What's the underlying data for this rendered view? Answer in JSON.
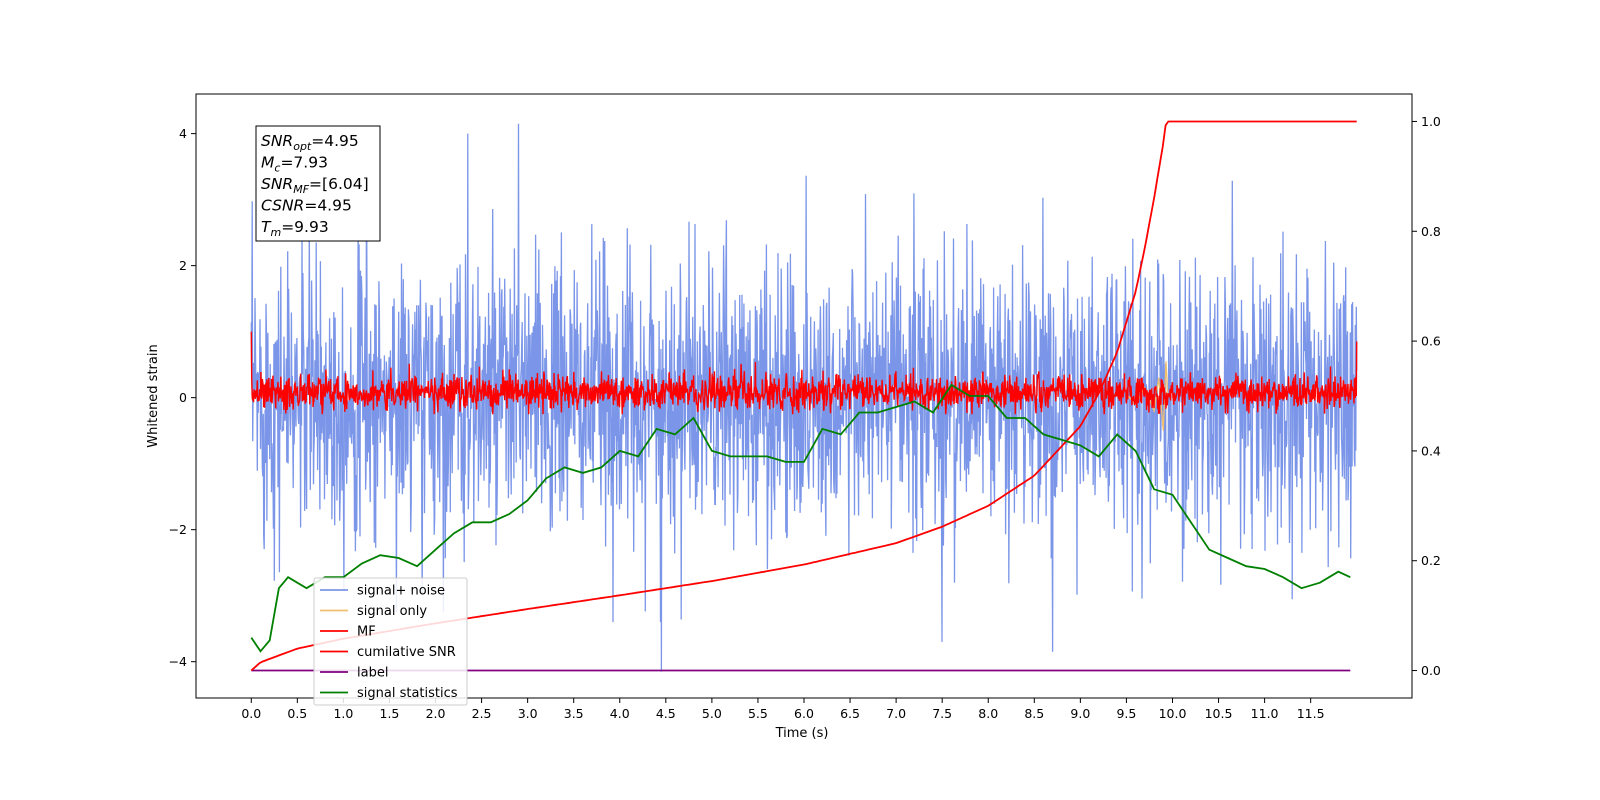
{
  "chart_data": {
    "type": "line",
    "xlabel": "Time (s)",
    "ylabel": "Whitened strain",
    "ylabel_right": "",
    "xlim": [
      -0.6,
      12.6
    ],
    "ylim": [
      -4.55,
      4.6
    ],
    "ylim_right": [
      -0.05,
      1.05
    ],
    "x_ticks": [
      "0.0",
      "0.5",
      "1.0",
      "1.5",
      "2.0",
      "2.5",
      "3.0",
      "3.5",
      "4.0",
      "4.5",
      "5.0",
      "5.5",
      "6.0",
      "6.5",
      "7.0",
      "7.5",
      "8.0",
      "8.5",
      "9.0",
      "9.5",
      "10.0",
      "10.5",
      "11.0",
      "11.5"
    ],
    "y_ticks": [
      "−4",
      "−2",
      "0",
      "2",
      "4"
    ],
    "y_ticks_right": [
      "0.0",
      "0.2",
      "0.4",
      "0.6",
      "0.8",
      "1.0"
    ],
    "grid": false,
    "legend_position": "lower-left",
    "annotation": [
      {
        "name": "SNR",
        "sub": "opt",
        "value": "=4.95"
      },
      {
        "name": "M",
        "sub": "c",
        "value": "=7.93"
      },
      {
        "name": "SNR",
        "sub": "MF",
        "value": "=[6.04]"
      },
      {
        "name": "CSNR",
        "sub": "",
        "value": "=4.95"
      },
      {
        "name": "T",
        "sub": "m",
        "value": "=9.93"
      }
    ],
    "series": [
      {
        "name": "signal+ noise",
        "axis": "left",
        "color": "#7b96e8",
        "description": "whitened noise spanning roughly -2.5 to +2.5, occasional spikes to about ±4",
        "x_range": [
          0.0,
          12.0
        ],
        "peaks": [
          [
            2.9,
            4.15
          ],
          [
            1.25,
            3.95
          ],
          [
            2.35,
            4.0
          ],
          [
            4.45,
            -4.15
          ],
          [
            7.5,
            -3.7
          ],
          [
            8.7,
            -3.85
          ]
        ]
      },
      {
        "name": "signal only",
        "axis": "left",
        "color": "#f0c070",
        "description": "chirp visible near merger",
        "x": [
          9.5,
          9.6,
          9.7,
          9.8,
          9.85,
          9.9,
          9.93,
          9.95
        ],
        "y": [
          0.05,
          -0.1,
          0.15,
          -0.2,
          0.3,
          -0.5,
          0.55,
          0.0
        ]
      },
      {
        "name": "MF",
        "axis": "left",
        "color": "#ff0000",
        "description": "matched-filter output fluctuating around 0 (about -0.25 to +0.5)",
        "x_range": [
          0.0,
          12.0
        ],
        "start_value": 1.0,
        "end_value": 0.85
      },
      {
        "name": "cumilative SNR",
        "axis": "right",
        "color": "#ff0000",
        "x": [
          0.0,
          0.1,
          0.5,
          1.0,
          2.0,
          3.0,
          4.0,
          5.0,
          6.0,
          7.0,
          7.5,
          8.0,
          8.5,
          9.0,
          9.2,
          9.4,
          9.6,
          9.7,
          9.8,
          9.85,
          9.9,
          9.93,
          12.0
        ],
        "values": [
          0.0,
          0.015,
          0.04,
          0.058,
          0.086,
          0.112,
          0.137,
          0.163,
          0.193,
          0.232,
          0.262,
          0.3,
          0.355,
          0.445,
          0.505,
          0.58,
          0.69,
          0.77,
          0.86,
          0.91,
          0.96,
          1.0,
          1.0
        ]
      },
      {
        "name": "label",
        "axis": "right",
        "color": "#800080",
        "x": [
          0.0,
          11.93
        ],
        "values": [
          0.0,
          0.0
        ]
      },
      {
        "name": "signal statistics",
        "axis": "right",
        "color": "#008000",
        "x": [
          0.0,
          0.1,
          0.2,
          0.3,
          0.4,
          0.6,
          0.8,
          1.0,
          1.2,
          1.4,
          1.6,
          1.8,
          2.0,
          2.2,
          2.4,
          2.6,
          2.8,
          3.0,
          3.2,
          3.4,
          3.6,
          3.8,
          4.0,
          4.2,
          4.4,
          4.6,
          4.8,
          5.0,
          5.2,
          5.4,
          5.6,
          5.8,
          6.0,
          6.2,
          6.4,
          6.6,
          6.8,
          7.0,
          7.2,
          7.4,
          7.6,
          7.8,
          8.0,
          8.2,
          8.4,
          8.6,
          8.8,
          9.0,
          9.2,
          9.4,
          9.6,
          9.8,
          10.0,
          10.2,
          10.4,
          10.6,
          10.8,
          11.0,
          11.2,
          11.4,
          11.6,
          11.8,
          11.93
        ],
        "values": [
          0.06,
          0.035,
          0.055,
          0.15,
          0.17,
          0.15,
          0.17,
          0.17,
          0.195,
          0.21,
          0.205,
          0.19,
          0.22,
          0.25,
          0.27,
          0.27,
          0.285,
          0.31,
          0.35,
          0.37,
          0.36,
          0.37,
          0.4,
          0.39,
          0.44,
          0.43,
          0.46,
          0.4,
          0.39,
          0.39,
          0.39,
          0.38,
          0.38,
          0.44,
          0.43,
          0.47,
          0.47,
          0.48,
          0.49,
          0.47,
          0.52,
          0.5,
          0.5,
          0.46,
          0.46,
          0.43,
          0.42,
          0.41,
          0.39,
          0.43,
          0.4,
          0.33,
          0.32,
          0.27,
          0.22,
          0.205,
          0.19,
          0.185,
          0.17,
          0.15,
          0.16,
          0.18,
          0.17
        ]
      }
    ]
  }
}
